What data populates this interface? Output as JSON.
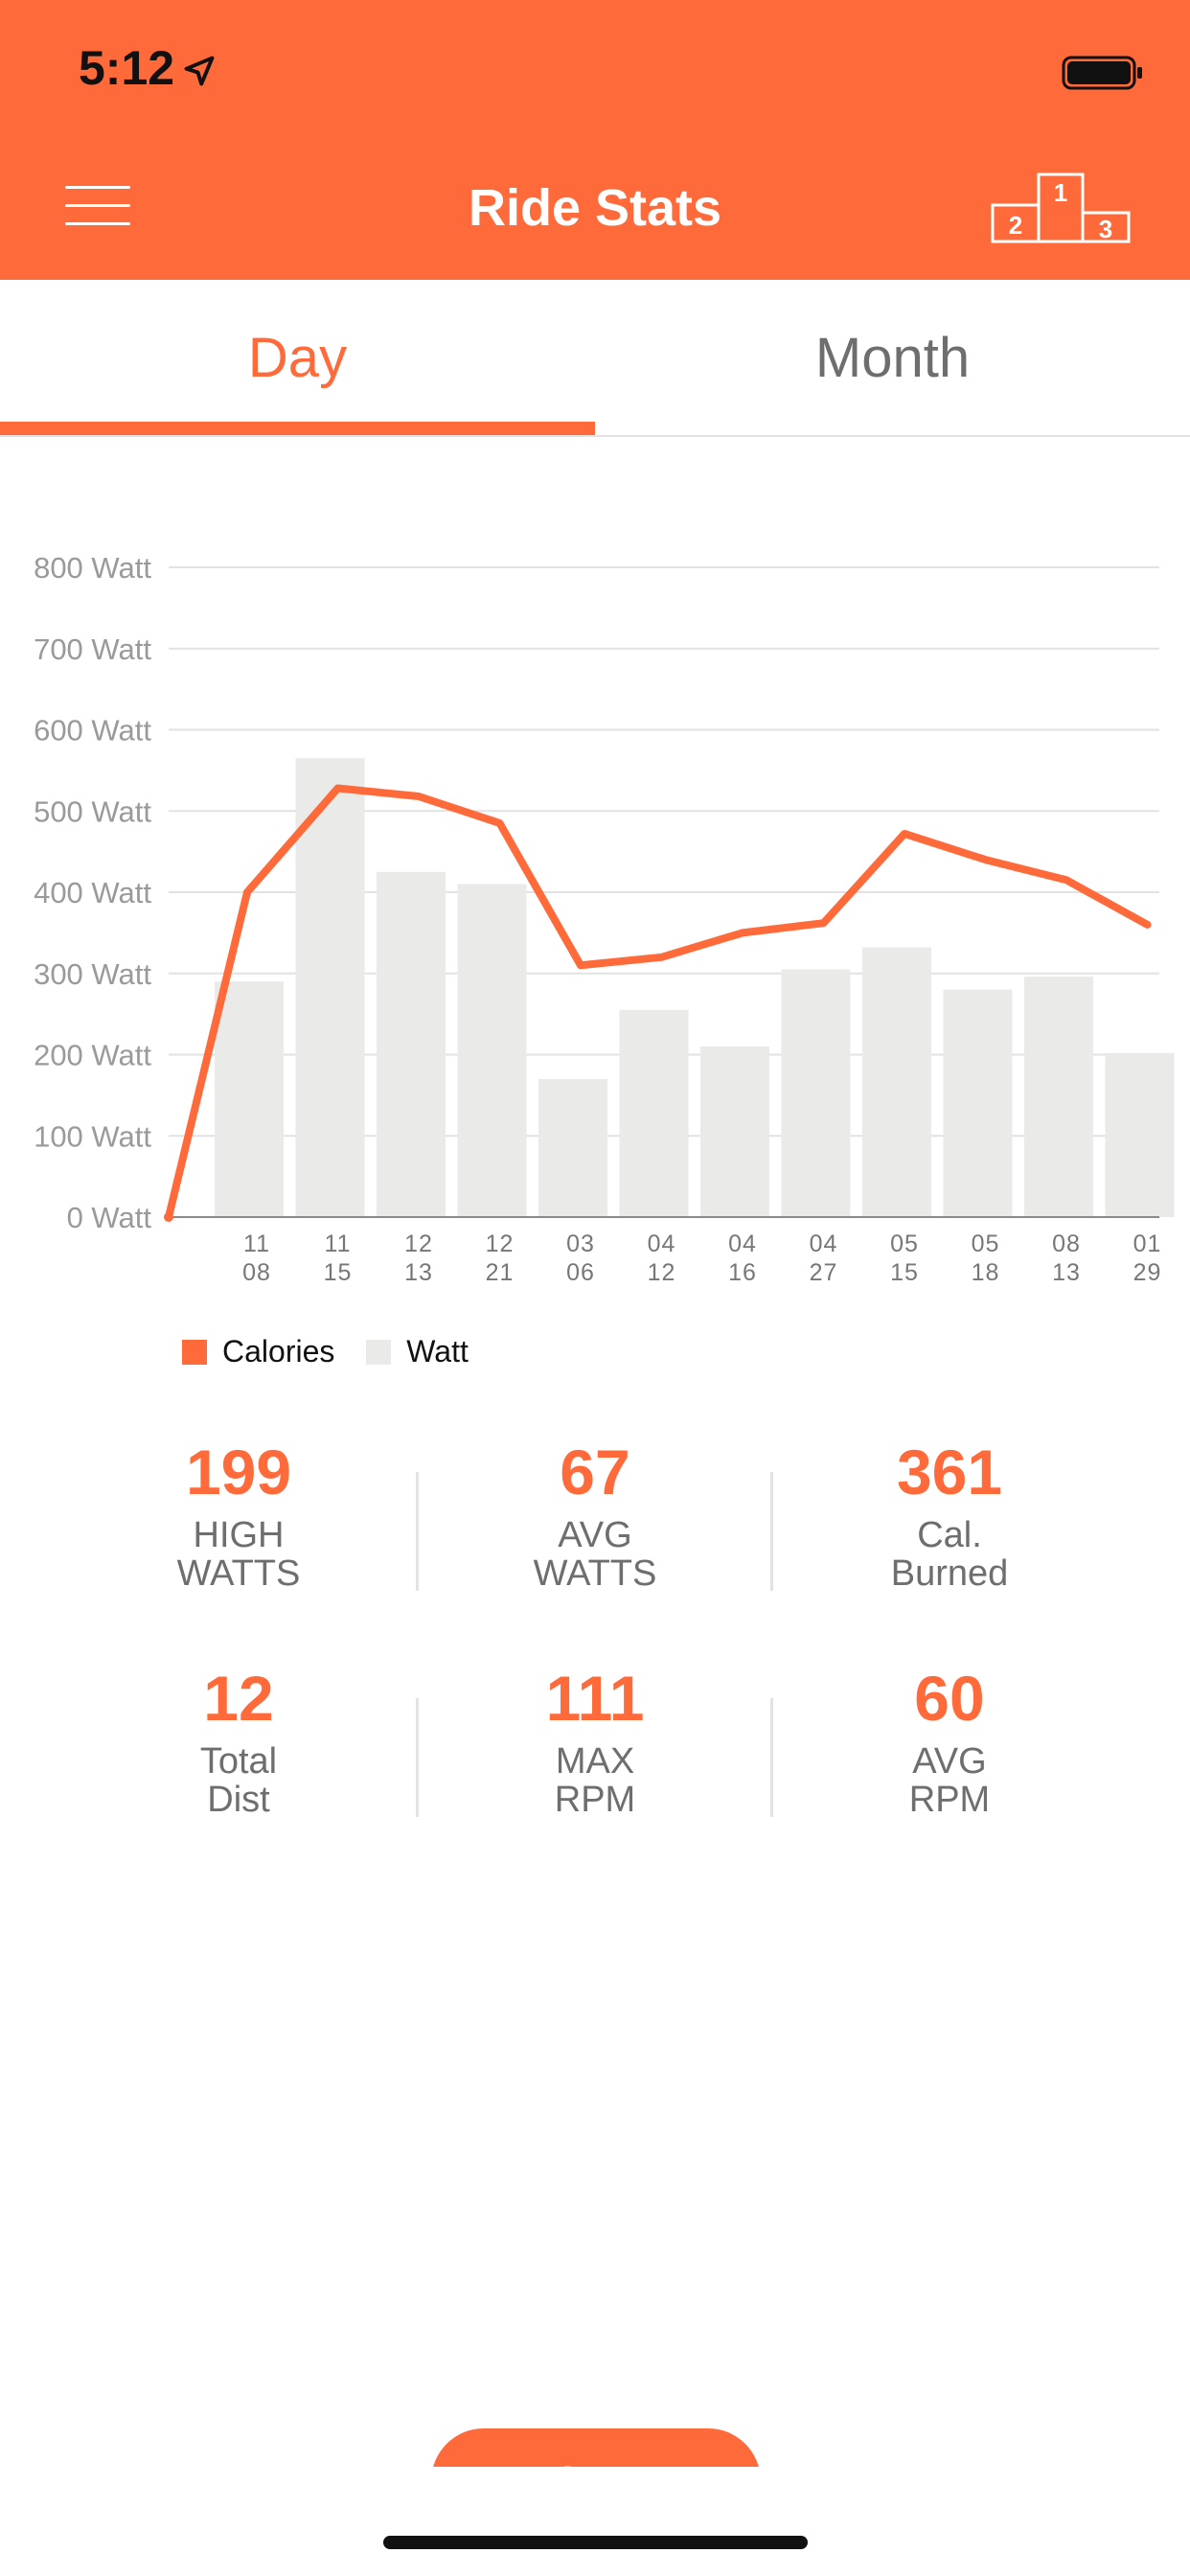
{
  "status_bar": {
    "time": "5:12"
  },
  "header": {
    "title": "Ride Stats"
  },
  "tabs": [
    {
      "label": "Day",
      "active": true
    },
    {
      "label": "Month",
      "active": false
    }
  ],
  "colors": {
    "accent": "#FF6A3A",
    "bar": "#EAEAE8",
    "axis_text": "#9A9A9A",
    "label_text": "#6E6E6E"
  },
  "chart_data": {
    "type": "bar",
    "categories": [
      "11\n08",
      "11\n15",
      "12\n13",
      "12\n21",
      "03\n06",
      "04\n12",
      "04\n16",
      "04\n27",
      "05\n15",
      "05\n18",
      "08\n13",
      "01\n29"
    ],
    "series": [
      {
        "name": "Watt",
        "type": "bar",
        "values": [
          290,
          565,
          425,
          410,
          170,
          255,
          210,
          305,
          332,
          280,
          296,
          202
        ]
      },
      {
        "name": "Calories",
        "type": "line",
        "values": [
          400,
          528,
          518,
          485,
          310,
          320,
          350,
          362,
          472,
          440,
          415,
          360
        ]
      }
    ],
    "line_start_value": 0,
    "y_ticks": [
      "0 Watt",
      "100 Watt",
      "200 Watt",
      "300 Watt",
      "400 Watt",
      "500 Watt",
      "600 Watt",
      "700 Watt",
      "800 Watt"
    ],
    "ylim": [
      0,
      800
    ],
    "legend": [
      "Calories",
      "Watt"
    ],
    "legend_position": "bottom-left",
    "grid": true
  },
  "stats": [
    {
      "value": "199",
      "label": "HIGH\nWATTS"
    },
    {
      "value": "67",
      "label": "AVG\nWATTS"
    },
    {
      "value": "361",
      "label": "Cal.\nBurned"
    },
    {
      "value": "12",
      "label": "Total\nDist"
    },
    {
      "value": "111",
      "label": "MAX\nRPM"
    },
    {
      "value": "60",
      "label": "AVG\nRPM"
    }
  ],
  "share_button": {
    "label": "share"
  },
  "icons": {
    "location": "location-arrow-icon",
    "battery": "battery-icon",
    "menu": "hamburger-menu-icon",
    "leaderboard": "podium-icon"
  }
}
